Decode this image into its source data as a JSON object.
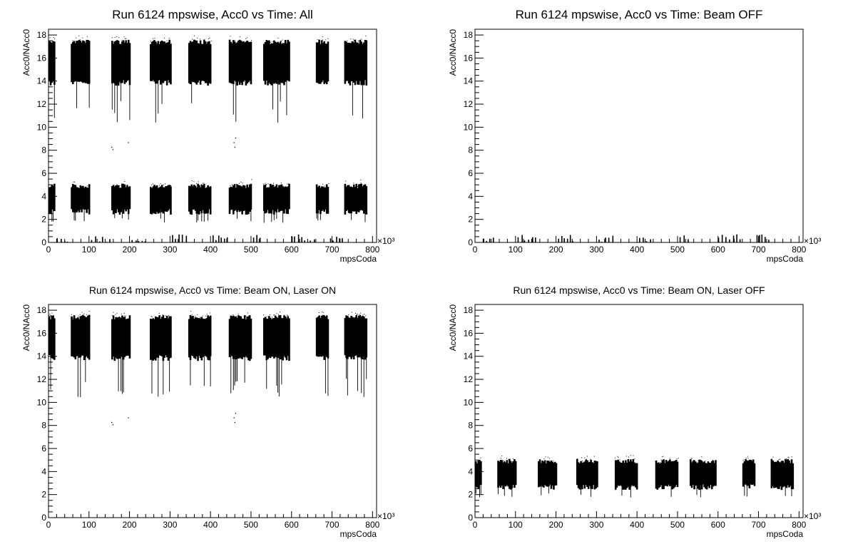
{
  "chart_data": [
    {
      "type": "scatter",
      "title": "Run 6124 mpswise, Acc0 vs Time: All",
      "xlabel": "mpsCoda",
      "ylabel": "Acc0/NAcc0",
      "x_multiplier": "×10³",
      "xlim": [
        0,
        810
      ],
      "ylim": [
        0,
        18.5
      ],
      "xticks": [
        "0",
        "100",
        "200",
        "300",
        "400",
        "500",
        "600",
        "700",
        "800"
      ],
      "yticks": [
        "0",
        "2",
        "4",
        "6",
        "8",
        "10",
        "12",
        "14",
        "16",
        "18"
      ],
      "bands": [
        {
          "name": "laser-on",
          "y_low": 13.6,
          "y_high": 17.6,
          "tail_low": 10.4
        },
        {
          "name": "laser-off",
          "y_low": 2.4,
          "y_high": 5.1,
          "tail_low": 1.7
        },
        {
          "name": "beam-off",
          "y_low": 0.05,
          "y_high": 0.7,
          "tail_low": 0.0
        }
      ],
      "stray_points": [
        [
          155,
          8.3
        ],
        [
          158,
          8.1
        ],
        [
          196,
          8.7
        ],
        [
          457,
          8.7
        ],
        [
          459,
          8.3
        ],
        [
          461,
          9.1
        ]
      ]
    },
    {
      "type": "scatter",
      "title": "Run 6124 mpswise, Acc0 vs Time: Beam OFF",
      "xlabel": "mpsCoda",
      "ylabel": "Acc0/NAcc0",
      "x_multiplier": "×10³",
      "xlim": [
        0,
        810
      ],
      "ylim": [
        0,
        18.5
      ],
      "xticks": [
        "0",
        "100",
        "200",
        "300",
        "400",
        "500",
        "600",
        "700",
        "800"
      ],
      "yticks": [
        "0",
        "2",
        "4",
        "6",
        "8",
        "10",
        "12",
        "14",
        "16",
        "18"
      ],
      "bands": [
        {
          "name": "beam-off",
          "y_low": 0.05,
          "y_high": 0.7,
          "tail_low": 0.0
        }
      ],
      "stray_points": []
    },
    {
      "type": "scatter",
      "title": "Run 6124 mpswise, Acc0 vs Time: Beam ON, Laser ON",
      "xlabel": "mpsCoda",
      "ylabel": "Acc0/NAcc0",
      "x_multiplier": "×10³",
      "xlim": [
        0,
        810
      ],
      "ylim": [
        0,
        18.5
      ],
      "xticks": [
        "0",
        "100",
        "200",
        "300",
        "400",
        "500",
        "600",
        "700",
        "800"
      ],
      "yticks": [
        "0",
        "2",
        "4",
        "6",
        "8",
        "10",
        "12",
        "14",
        "16",
        "18"
      ],
      "bands": [
        {
          "name": "laser-on",
          "y_low": 13.6,
          "y_high": 17.6,
          "tail_low": 10.4
        }
      ],
      "stray_points": [
        [
          155,
          8.3
        ],
        [
          158,
          8.1
        ],
        [
          196,
          8.7
        ],
        [
          457,
          8.7
        ],
        [
          459,
          8.3
        ],
        [
          461,
          9.1
        ]
      ]
    },
    {
      "type": "scatter",
      "title": "Run 6124 mpswise, Acc0 vs Time: Beam ON, Laser OFF",
      "xlabel": "mpsCoda",
      "ylabel": "Acc0/NAcc0",
      "x_multiplier": "×10³",
      "xlim": [
        0,
        810
      ],
      "ylim": [
        0,
        18.5
      ],
      "xticks": [
        "0",
        "100",
        "200",
        "300",
        "400",
        "500",
        "600",
        "700",
        "800"
      ],
      "yticks": [
        "0",
        "2",
        "4",
        "6",
        "8",
        "10",
        "12",
        "14",
        "16",
        "18"
      ],
      "bands": [
        {
          "name": "laser-off",
          "y_low": 2.4,
          "y_high": 5.1,
          "tail_low": 1.7
        }
      ],
      "stray_points": []
    }
  ],
  "laser_cycles": [
    [
      0,
      15
    ],
    [
      55,
      100
    ],
    [
      155,
      200
    ],
    [
      250,
      300
    ],
    [
      345,
      400
    ],
    [
      445,
      500
    ],
    [
      530,
      595
    ],
    [
      660,
      690
    ],
    [
      730,
      785
    ]
  ],
  "laser_off_gaps": [
    [
      20,
      50
    ],
    [
      105,
      150
    ],
    [
      205,
      245
    ],
    [
      305,
      340
    ],
    [
      405,
      440
    ],
    [
      505,
      525
    ],
    [
      600,
      655
    ],
    [
      695,
      725
    ]
  ],
  "marker_color": "#000000"
}
